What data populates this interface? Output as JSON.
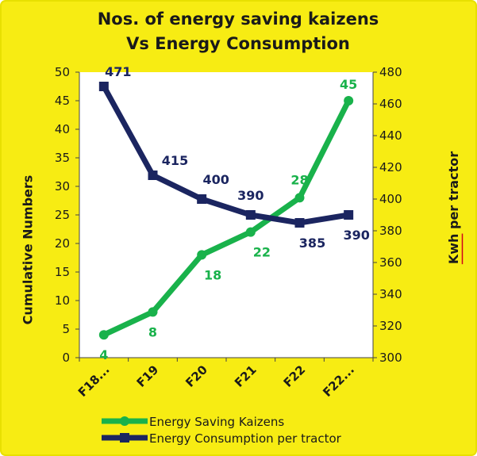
{
  "colors": {
    "background": "#f7ec13",
    "plot_background": "#ffffff",
    "border": "#e8e000",
    "series_green": "#19b24b",
    "series_navy": "#1b2560",
    "axis_line": "#444444",
    "kwh_underline": "#d0021b"
  },
  "chart_data": {
    "type": "line",
    "title": [
      "Nos. of  energy saving kaizens",
      "Vs  Energy Consumption"
    ],
    "categories": [
      "F18...",
      "F19",
      "F20",
      "F21",
      "F22",
      "F22..."
    ],
    "ylabel_left": "Cumulative Numbers",
    "ylabel_right": {
      "underlined": "Kwh",
      "rest": " per tractor"
    },
    "ylim_left": [
      0,
      50
    ],
    "yticks_left": [
      0,
      5,
      10,
      15,
      20,
      25,
      30,
      35,
      40,
      45,
      50
    ],
    "ylim_right": [
      300,
      480
    ],
    "yticks_right": [
      300,
      320,
      340,
      360,
      380,
      400,
      420,
      440,
      460,
      480
    ],
    "grid": false,
    "legend_position": "bottom",
    "series": [
      {
        "name": "Energy Saving Kaizens",
        "axis": "left",
        "color": "#19b24b",
        "marker": "circle",
        "values": [
          4,
          8,
          18,
          22,
          28,
          45
        ],
        "labels": [
          "4",
          "8",
          "18",
          "22",
          "28",
          "45"
        ]
      },
      {
        "name": "Energy Consumption per tractor",
        "axis": "right",
        "color": "#1b2560",
        "marker": "square",
        "values": [
          471,
          415,
          400,
          390,
          385,
          390
        ],
        "labels": [
          "471",
          "415",
          "400",
          "390",
          "385",
          "390"
        ]
      }
    ]
  }
}
